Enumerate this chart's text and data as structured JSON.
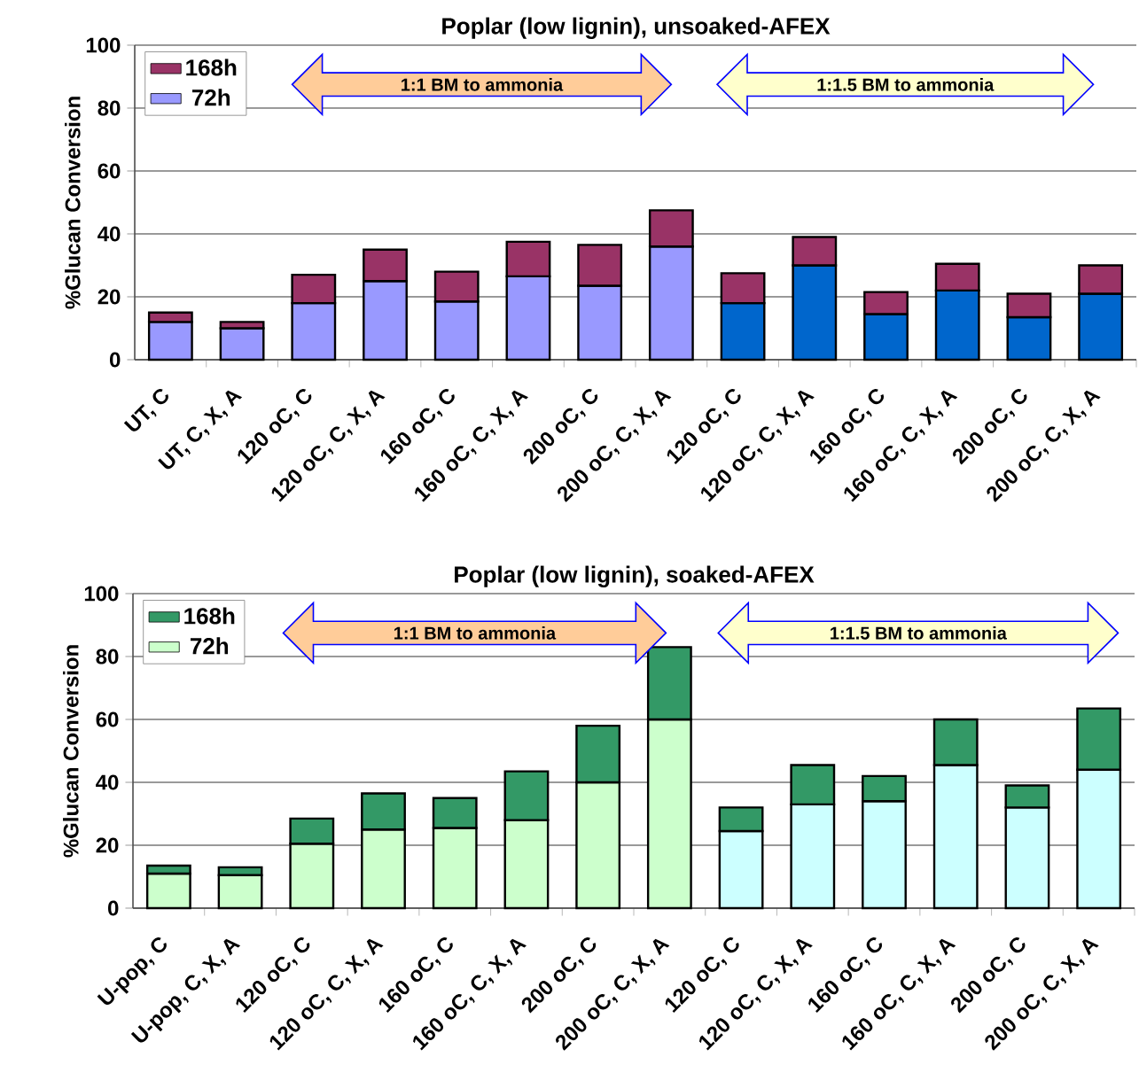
{
  "chart_data": [
    {
      "type": "bar",
      "stacked": true,
      "title": "Poplar (low lignin), unsoaked-AFEX",
      "ylabel": "%Glucan Conversion",
      "categories": [
        "UT, C",
        "UT, C, X, A",
        "120 oC, C",
        "120 oC, C, X, A",
        "160 oC, C",
        "160 oC, C, X, A",
        "200 oC, C",
        "200 oC, C, X, A",
        "120 oC, C",
        "120 oC, C, X, A",
        "160 oC, C",
        "160 oC, C, X, A",
        "200 oC, C",
        "200 oC, C, X, A"
      ],
      "series": [
        {
          "name": "72h",
          "colors": [
            "#9999ff",
            "#9999ff",
            "#9999ff",
            "#9999ff",
            "#9999ff",
            "#9999ff",
            "#9999ff",
            "#9999ff",
            "#0066cc",
            "#0066cc",
            "#0066cc",
            "#0066cc",
            "#0066cc",
            "#0066cc"
          ],
          "values": [
            12,
            10,
            18,
            25,
            18.5,
            26.5,
            23.5,
            36,
            18,
            30,
            14.5,
            22,
            13.5,
            21
          ]
        },
        {
          "name": "168h",
          "color": "#993366",
          "values": [
            3,
            2,
            9,
            10,
            9.5,
            11,
            13,
            11.5,
            9.5,
            9,
            7,
            8.5,
            7.5,
            9
          ]
        }
      ],
      "ylim": [
        0,
        100
      ],
      "yticks": [
        0,
        20,
        40,
        60,
        80,
        100
      ],
      "grid": "y",
      "legend": "top left",
      "annotations": [
        "1:1 BM to ammonia",
        "1:1.5 BM to ammonia"
      ]
    },
    {
      "type": "bar",
      "stacked": true,
      "title": "Poplar (low lignin), soaked-AFEX",
      "ylabel": "%Glucan Conversion",
      "categories": [
        "U-pop, C",
        "U-pop, C, X, A",
        "120 oC, C",
        "120 oC, C, X, A",
        "160 oC, C",
        "160 oC, C, X, A",
        "200 oC, C",
        "200 oC, C, X, A",
        "120 oC, C",
        "120 oC, C, X, A",
        "160 oC, C",
        "160 oC, C, X, A",
        "200 oC, C",
        "200 oC, C, X, A"
      ],
      "series": [
        {
          "name": "72h",
          "colors": [
            "#ccffcc",
            "#ccffcc",
            "#ccffcc",
            "#ccffcc",
            "#ccffcc",
            "#ccffcc",
            "#ccffcc",
            "#ccffcc",
            "#ccffff",
            "#ccffff",
            "#ccffff",
            "#ccffff",
            "#ccffff",
            "#ccffff"
          ],
          "values": [
            11,
            10.5,
            20.5,
            25,
            25.5,
            28,
            40,
            60,
            24.5,
            33,
            34,
            45.5,
            32,
            44
          ]
        },
        {
          "name": "168h",
          "color": "#339966",
          "values": [
            2.5,
            2.5,
            8,
            11.5,
            9.5,
            15.5,
            18,
            23,
            7.5,
            12.5,
            8,
            14.5,
            7,
            19.5
          ]
        }
      ],
      "ylim": [
        0,
        100
      ],
      "yticks": [
        0,
        20,
        40,
        60,
        80,
        100
      ],
      "grid": "y",
      "legend": "top left",
      "annotations": [
        "1:1 BM to ammonia",
        "1:1.5 BM to ammonia"
      ]
    }
  ]
}
